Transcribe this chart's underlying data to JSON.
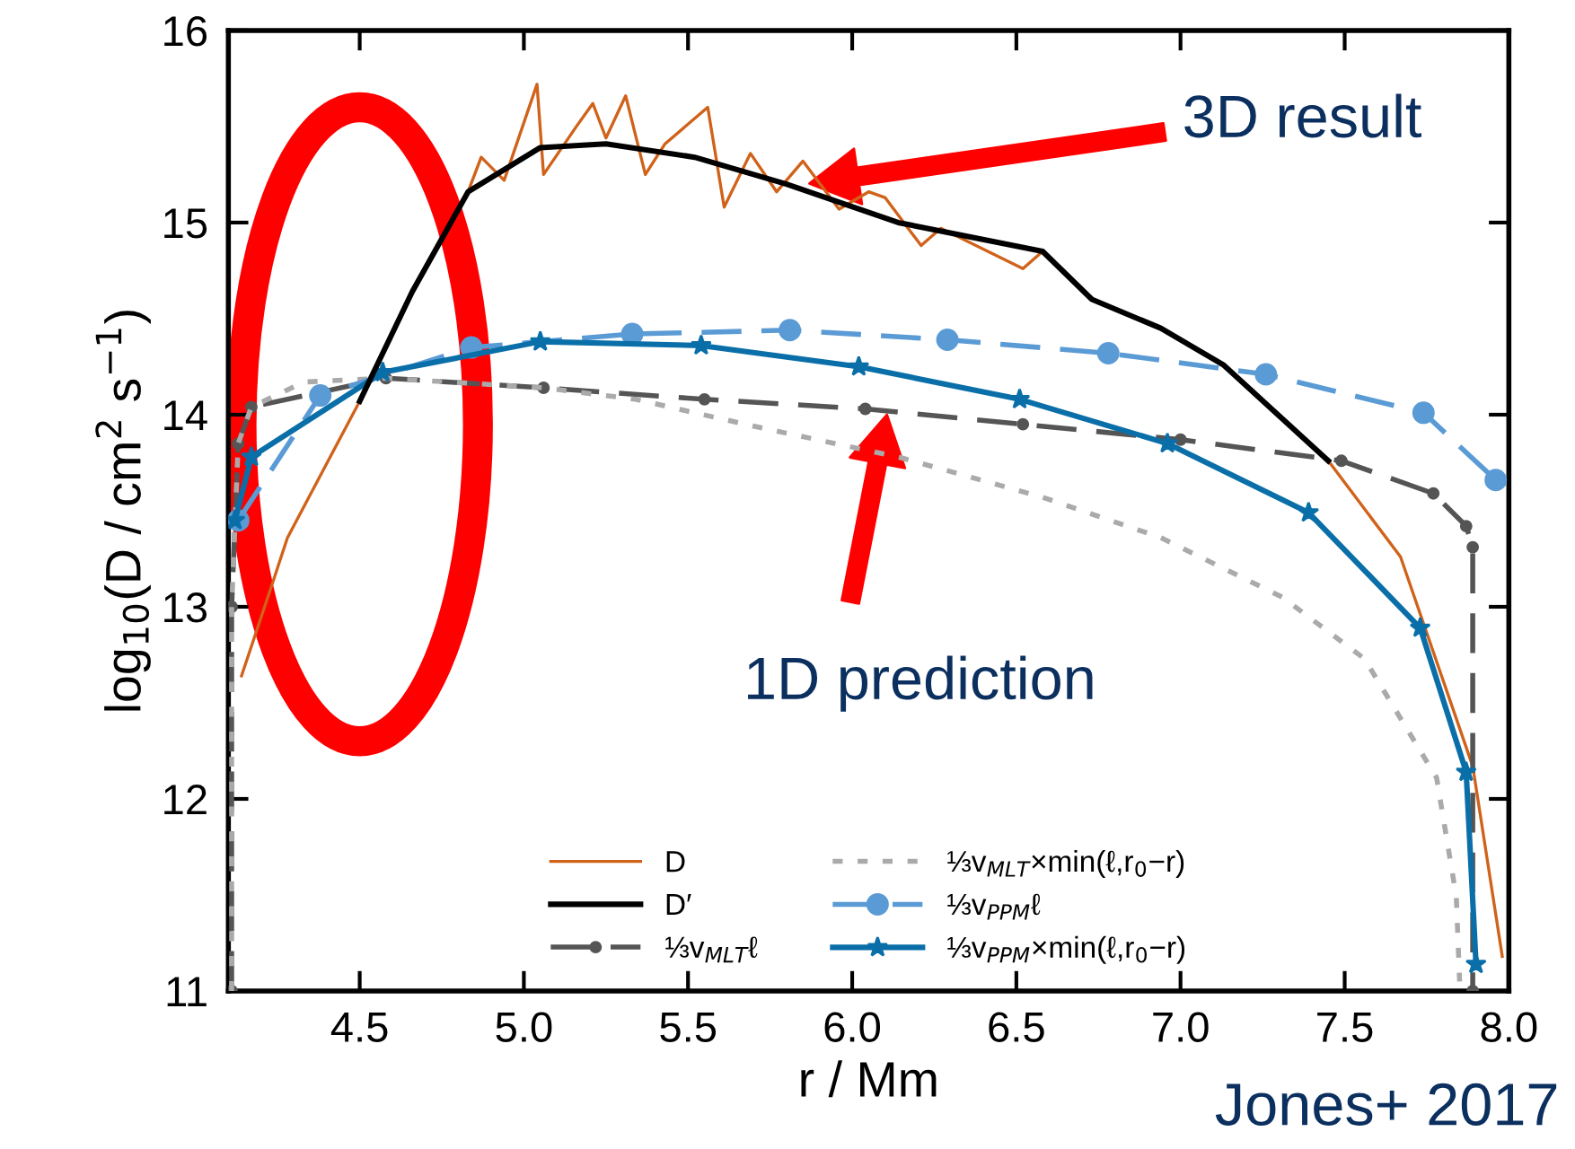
{
  "chart_data": {
    "type": "line",
    "xlabel": "r / Mm",
    "ylabel": "log$_{10}$(D / cm$^{2}$ s$^{−1}$)",
    "xlim": [
      4.1,
      8.0
    ],
    "ylim": [
      11,
      16
    ],
    "xticks": [
      4.5,
      {
        "value": 5,
        "label": "5.0"
      },
      5.5,
      {
        "value": 6,
        "label": "6.0"
      },
      6.5,
      {
        "value": 7,
        "label": "7.0"
      },
      7.5,
      {
        "value": 8,
        "label": "8.0"
      }
    ],
    "yticks": [
      11,
      12,
      13,
      14,
      15,
      16
    ],
    "grid": false,
    "legend": "bottom",
    "series": [
      {
        "name": "D",
        "color": "#d0621a",
        "line_style": "solid",
        "marker": "none",
        "x": [
          4.14,
          4.23,
          4.28,
          4.5,
          4.66,
          4.83,
          4.87,
          4.94,
          5.04,
          5.06,
          5.16,
          5.21,
          5.25,
          5.31,
          5.37,
          5.43,
          5.56,
          5.61,
          5.69,
          5.77,
          5.85,
          5.96,
          6.05,
          6.1,
          6.21,
          6.27,
          6.52,
          6.58,
          6.73,
          6.94,
          7.13,
          7.45,
          7.67,
          7.89,
          7.98
        ],
        "values": [
          12.64,
          13.1,
          13.36,
          14.07,
          14.64,
          15.16,
          15.34,
          15.22,
          15.72,
          15.25,
          15.5,
          15.62,
          15.44,
          15.66,
          15.25,
          15.41,
          15.6,
          15.08,
          15.36,
          15.16,
          15.32,
          15.07,
          15.16,
          15.13,
          14.88,
          14.97,
          14.76,
          14.85,
          14.6,
          14.45,
          14.26,
          13.76,
          13.26,
          12.17,
          11.18
        ]
      },
      {
        "name": "D′",
        "color": "#000000",
        "line_style": "solid",
        "marker": "none",
        "x": [
          4.5,
          4.66,
          4.83,
          5.05,
          5.25,
          5.52,
          5.8,
          6.14,
          6.58,
          6.73,
          6.94,
          7.13,
          7.45
        ],
        "values": [
          14.07,
          14.64,
          15.16,
          15.39,
          15.41,
          15.34,
          15.2,
          15.0,
          14.85,
          14.6,
          14.45,
          14.26,
          13.76
        ]
      },
      {
        "name": "⅓v$_{MLT}$ℓ",
        "color": "#555555",
        "line_style": "dashed",
        "marker": "circle",
        "x": [
          4.11,
          4.11,
          4.13,
          4.17,
          4.58,
          5.06,
          5.55,
          6.04,
          6.52,
          7.0,
          7.49,
          7.77,
          7.87,
          7.89,
          7.89
        ],
        "values": [
          11.0,
          13.0,
          13.85,
          14.04,
          14.19,
          14.14,
          14.08,
          14.03,
          13.95,
          13.87,
          13.76,
          13.59,
          13.42,
          13.31,
          11.0
        ]
      },
      {
        "name": "⅓v$_{MLT}$×min(ℓ,r$_{0}$−r)",
        "color": "#aaaaaa",
        "line_style": "dotted",
        "marker": "none",
        "x": [
          4.11,
          4.11,
          4.13,
          4.17,
          4.33,
          4.58,
          5.06,
          5.34,
          5.7,
          6.14,
          6.58,
          6.94,
          7.31,
          7.56,
          7.78,
          7.84,
          7.85
        ],
        "values": [
          11.0,
          13.0,
          13.85,
          14.04,
          14.17,
          14.19,
          14.14,
          14.08,
          13.94,
          13.78,
          13.57,
          13.36,
          13.05,
          12.73,
          12.11,
          11.49,
          11.05
        ]
      },
      {
        "name": "⅓v$_{PPM}$ℓ",
        "color": "#5b9bd5",
        "line_style": "dashed",
        "marker": "circle",
        "x": [
          4.13,
          4.38,
          4.84,
          5.33,
          5.81,
          6.29,
          6.78,
          7.26,
          7.74,
          7.96
        ],
        "values": [
          13.45,
          14.1,
          14.35,
          14.42,
          14.44,
          14.39,
          14.32,
          14.21,
          14.01,
          13.66
        ]
      },
      {
        "name": "⅓v$_{PPM}$×min(ℓ,r$_{0}$−r)",
        "color": "#0a6fa8",
        "line_style": "solid",
        "marker": "star",
        "x": [
          4.12,
          4.17,
          4.57,
          5.05,
          5.54,
          6.02,
          6.51,
          6.96,
          7.39,
          7.73,
          7.87,
          7.9
        ],
        "values": [
          13.45,
          13.78,
          14.22,
          14.38,
          14.36,
          14.25,
          14.08,
          13.85,
          13.49,
          12.89,
          12.14,
          11.14
        ]
      }
    ],
    "annotations": [
      "3D result",
      "1D prediction",
      "Jones+ 2017"
    ]
  }
}
